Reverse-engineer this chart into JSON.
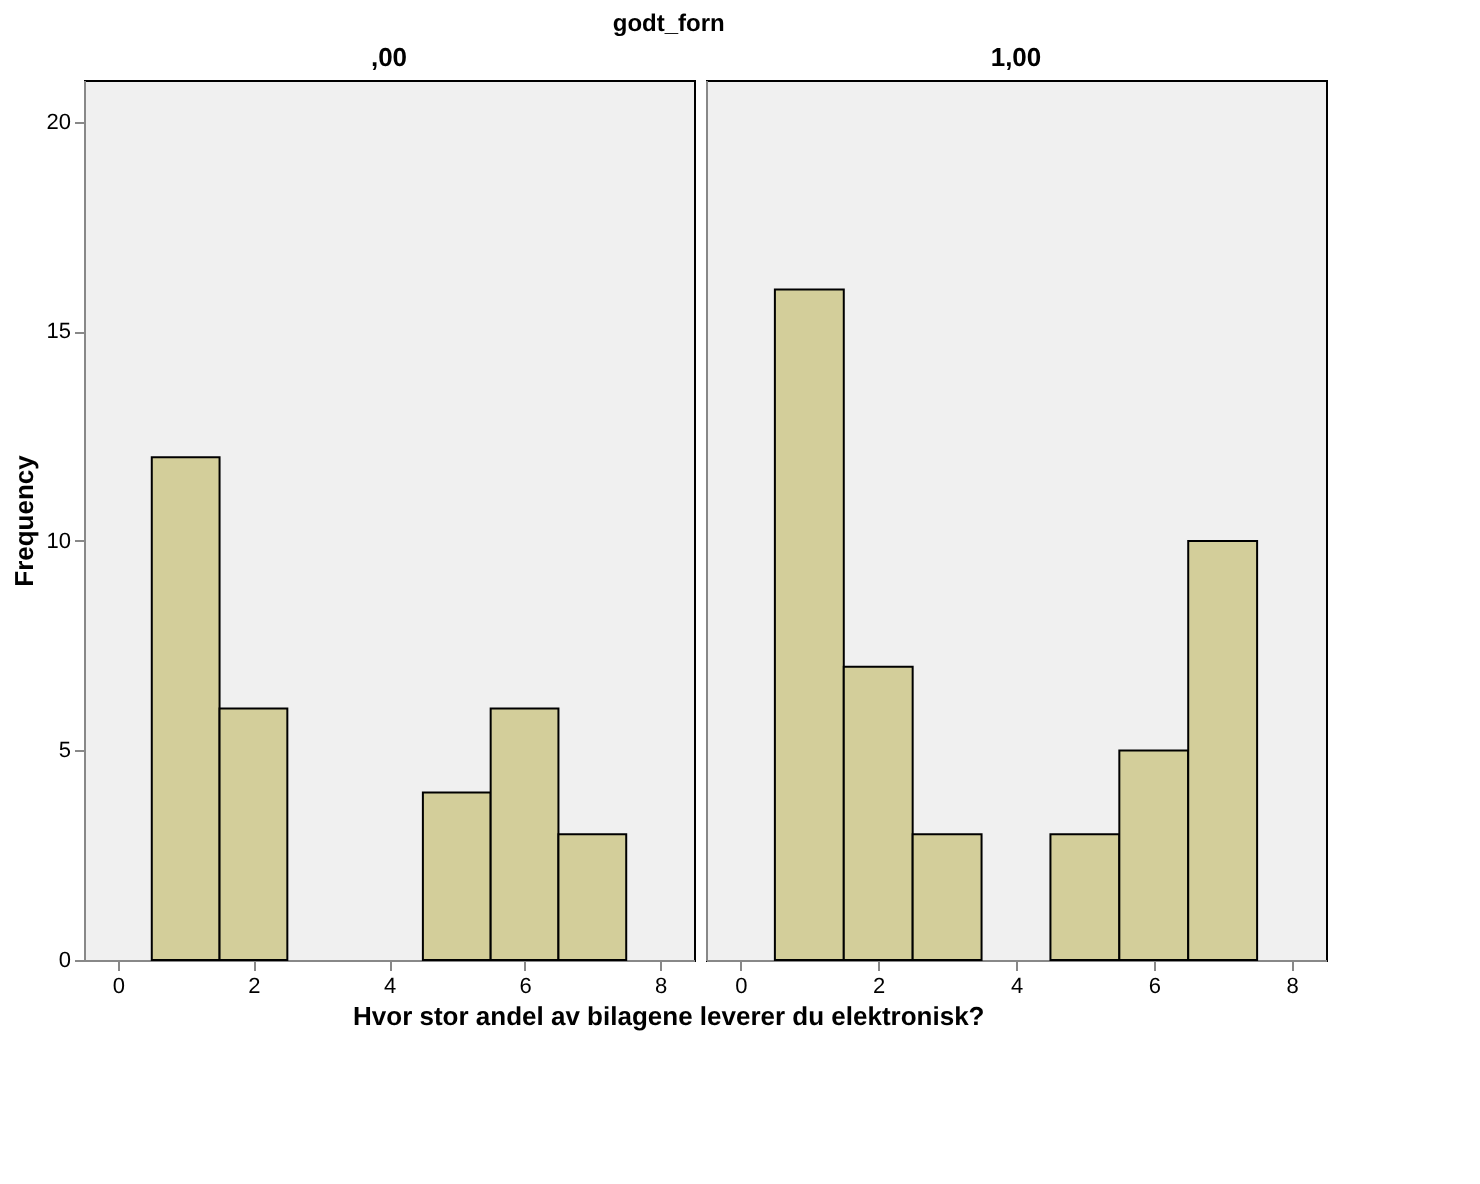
{
  "chart_data": [
    {
      "type": "histogram",
      "title": ",00",
      "legend_title": "godt_forn",
      "xlabel": "Hvor stor andel av bilagene leverer du elektronisk?",
      "ylabel": "Frequency",
      "bins": [
        0.5,
        1.5,
        2.5,
        3.5,
        4.5,
        5.5,
        6.5,
        7.5
      ],
      "values": [
        12,
        6,
        0,
        0,
        4,
        6,
        3
      ],
      "color": "#d3ce9a",
      "xlim": [
        -0.5,
        8.5
      ],
      "xticks": [
        0,
        2,
        4,
        6,
        8
      ],
      "ylim": [
        0,
        21
      ],
      "yticks": [
        0,
        5,
        10,
        15,
        20
      ],
      "grid": false
    },
    {
      "type": "histogram",
      "title": "1,00",
      "bins": [
        0.5,
        1.5,
        2.5,
        3.5,
        4.5,
        5.5,
        6.5,
        7.5
      ],
      "values": [
        16,
        7,
        3,
        0,
        3,
        5,
        10
      ],
      "color": "#d3ce9a",
      "xlim": [
        -0.5,
        8.5
      ],
      "xticks": [
        0,
        2,
        4,
        6,
        8
      ],
      "ylim": [
        0,
        21
      ],
      "yticks": [
        0,
        5,
        10,
        15,
        20
      ],
      "grid": false,
      "tick_labels": "x"
    }
  ]
}
